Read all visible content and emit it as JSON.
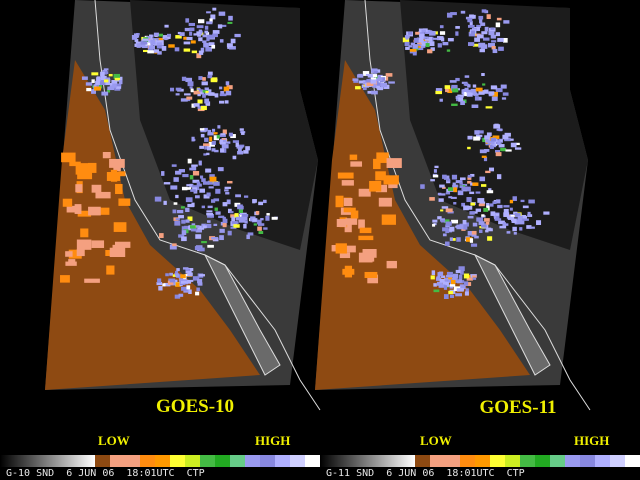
{
  "panels": [
    {
      "title": "GOES-10",
      "low": "LOW",
      "high": "HIGH",
      "footer": "G-10 SND  6 JUN 06  18:01UTC  CTP"
    },
    {
      "title": "GOES-11",
      "low": "LOW",
      "high": "HIGH",
      "footer": "G-11 SND  6 JUN 06  18:01UTC  CTP"
    }
  ]
}
